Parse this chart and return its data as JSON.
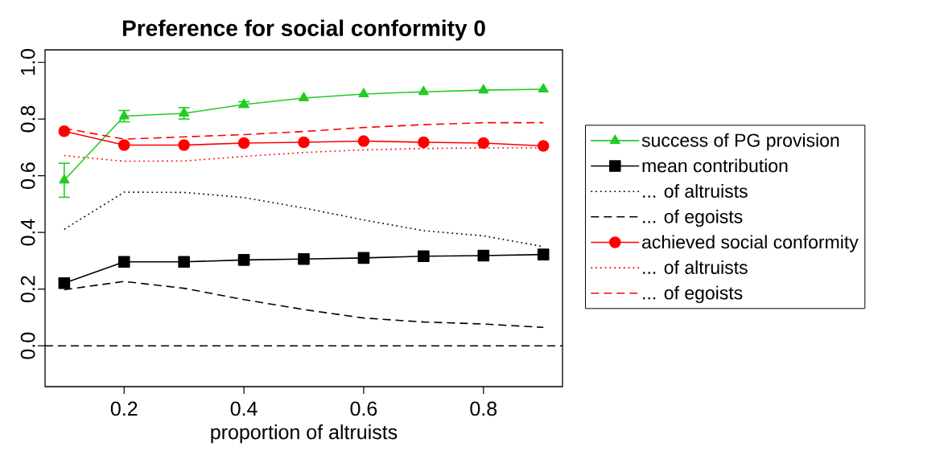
{
  "chart_data": {
    "type": "line",
    "title": "Preference for social conformity 0",
    "xlabel": "proportion of altruists",
    "x": [
      0.1,
      0.2,
      0.3,
      0.4,
      0.5,
      0.6,
      0.7,
      0.8,
      0.9
    ],
    "xlim": [
      0.068,
      0.932
    ],
    "xticks": [
      0.2,
      0.4,
      0.6,
      0.8
    ],
    "ylim": [
      -0.144,
      1.044
    ],
    "yticks": [
      {
        "value": 0,
        "label": "0.0"
      },
      0.2,
      0.4,
      0.6,
      0.8,
      {
        "value": 1,
        "label": "1.0"
      }
    ],
    "grid": false,
    "legend": "right",
    "ref_lines": [
      {
        "axis": "y",
        "value": 0,
        "color": "#000000",
        "line_style": "dashed"
      }
    ],
    "series": [
      {
        "name": "success of PG provision",
        "color": "#22cc22",
        "marker": "triangle",
        "line_style": "solid",
        "values": [
          0.584,
          0.81,
          0.82,
          0.851,
          0.874,
          0.888,
          0.896,
          0.902,
          0.905
        ],
        "errors": [
          0.06,
          0.02,
          0.02,
          0.01,
          null,
          null,
          null,
          null,
          null
        ]
      },
      {
        "name": "mean contribution",
        "color": "#000000",
        "marker": "square",
        "line_style": "solid",
        "values": [
          0.221,
          0.296,
          0.296,
          0.303,
          0.306,
          0.31,
          0.316,
          0.318,
          0.322
        ]
      },
      {
        "name": "... of altruists",
        "color": "#000000",
        "marker": "none",
        "line_style": "dotted",
        "values": [
          0.411,
          0.542,
          0.541,
          0.523,
          0.486,
          0.444,
          0.406,
          0.388,
          0.35
        ]
      },
      {
        "name": "... of egoists",
        "color": "#000000",
        "marker": "none",
        "line_style": "dashed",
        "values": [
          0.198,
          0.227,
          0.203,
          0.163,
          0.128,
          0.098,
          0.084,
          0.077,
          0.065
        ]
      },
      {
        "name": "achieved social conformity",
        "color": "#ff0000",
        "marker": "circle",
        "line_style": "solid",
        "values": [
          0.757,
          0.708,
          0.708,
          0.715,
          0.718,
          0.722,
          0.718,
          0.715,
          0.705
        ]
      },
      {
        "name": "... of altruists",
        "color": "#ff0000",
        "marker": "none",
        "line_style": "dotted",
        "values": [
          0.671,
          0.651,
          0.652,
          0.668,
          0.682,
          0.691,
          0.696,
          0.698,
          0.698
        ]
      },
      {
        "name": "... of egoists",
        "color": "#ff0000",
        "marker": "none",
        "line_style": "dashed",
        "values": [
          0.767,
          0.729,
          0.737,
          0.745,
          0.756,
          0.77,
          0.78,
          0.787,
          0.787
        ]
      }
    ]
  }
}
